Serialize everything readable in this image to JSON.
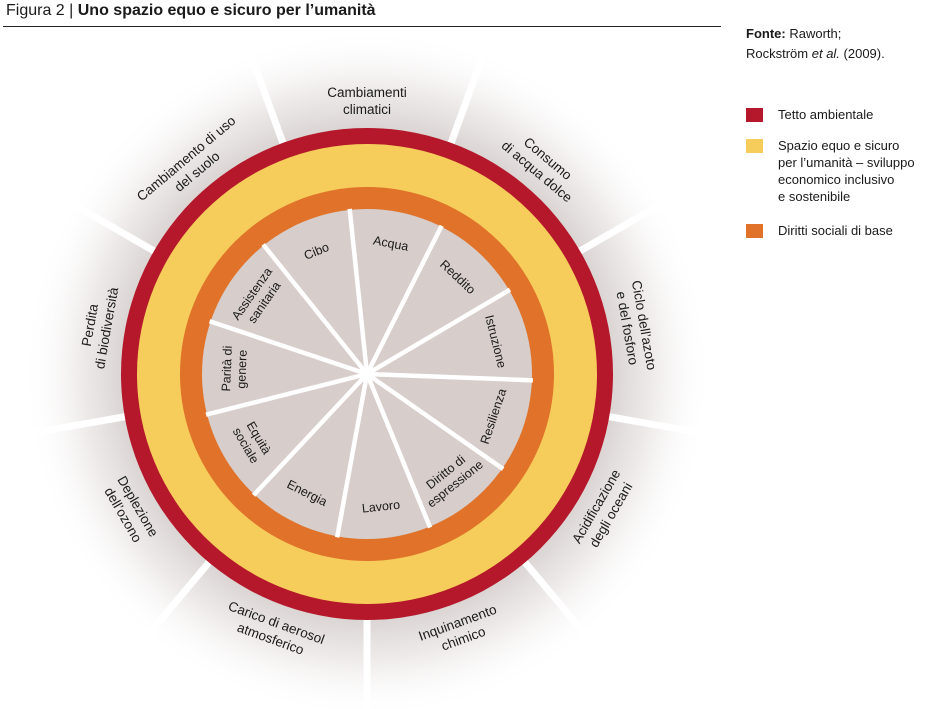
{
  "header": {
    "figure_label": "Figura 2 |",
    "title": "Uno spazio equo e sicuro per l’umanità"
  },
  "source": {
    "label": "Fonte:",
    "text_line1": "Raworth;",
    "text_line2_prefix": "Rockström ",
    "text_line2_italic": "et al.",
    "text_line2_suffix": " (2009)."
  },
  "legend": [
    {
      "color": "#b5182b",
      "lines": [
        "Tetto ambientale"
      ]
    },
    {
      "color": "#f6cc5a",
      "lines": [
        "Spazio equo e sicuro",
        "per l’umanità – sviluppo",
        "economico inclusivo",
        "e sostenibile"
      ]
    },
    {
      "color": "#e07229",
      "lines": [
        "Diritti sociali di base"
      ]
    }
  ],
  "colors": {
    "ceiling": "#b5182b",
    "safe_space": "#f6cc5a",
    "foundation": "#e07229",
    "inner": "#d7cdca",
    "outer_shade": "#cfc8c6",
    "divider": "#ffffff"
  },
  "outer_labels": [
    {
      "text": [
        "Cambiamenti",
        "climatici"
      ]
    },
    {
      "text": [
        "Consumo",
        "di acqua dolce"
      ]
    },
    {
      "text": [
        "Ciclo dell’azoto",
        "e del fosforo"
      ]
    },
    {
      "text": [
        "Acidificazione",
        "degli oceani"
      ]
    },
    {
      "text": [
        "Inquinamento",
        "chimico"
      ]
    },
    {
      "text": [
        "Carico di aerosol",
        "atmosferico"
      ]
    },
    {
      "text": [
        "Deplezione",
        "dell’ozono"
      ]
    },
    {
      "text": [
        "Perdita",
        "di biodiversità"
      ]
    },
    {
      "text": [
        "Cambiamento di uso",
        "del suolo"
      ]
    }
  ],
  "inner_labels": [
    {
      "text": [
        "Acqua"
      ]
    },
    {
      "text": [
        "Reddito"
      ]
    },
    {
      "text": [
        "Istruzione"
      ]
    },
    {
      "text": [
        "Resilienza"
      ]
    },
    {
      "text": [
        "Diritto di",
        "espressione"
      ]
    },
    {
      "text": [
        "Lavoro"
      ]
    },
    {
      "text": [
        "Energia"
      ]
    },
    {
      "text": [
        "Equità",
        "sociale"
      ]
    },
    {
      "text": [
        "Parità di",
        "genere"
      ]
    },
    {
      "text": [
        "Assistenza",
        "sanitaria"
      ]
    },
    {
      "text": [
        "Cibo"
      ]
    }
  ]
}
